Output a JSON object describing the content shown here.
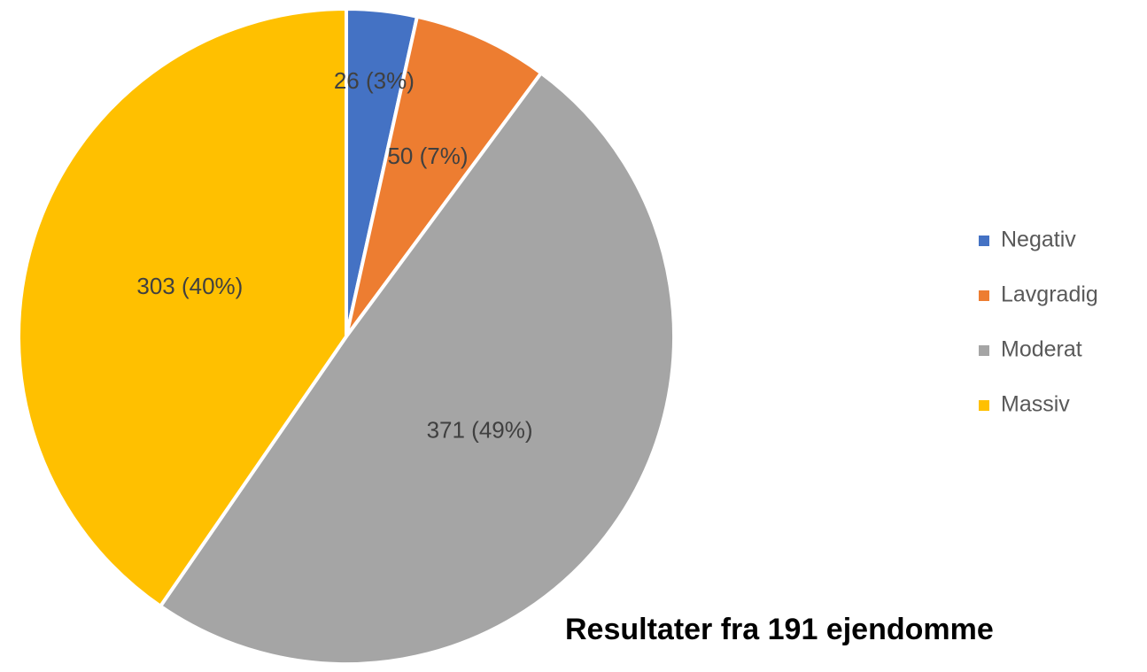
{
  "chart_data": {
    "type": "pie",
    "title": "Resultater fra 191 ejendomme",
    "categories": [
      "Negativ",
      "Lavgradig",
      "Moderat",
      "Massiv"
    ],
    "values": [
      26,
      50,
      371,
      303
    ],
    "value_labels": [
      "26 (3%)",
      "50 (7%)",
      "371 (49%)",
      "303 (40%)"
    ],
    "colors": [
      "#4472c4",
      "#ed7d31",
      "#a5a5a5",
      "#ffc000"
    ],
    "legend": "right"
  }
}
